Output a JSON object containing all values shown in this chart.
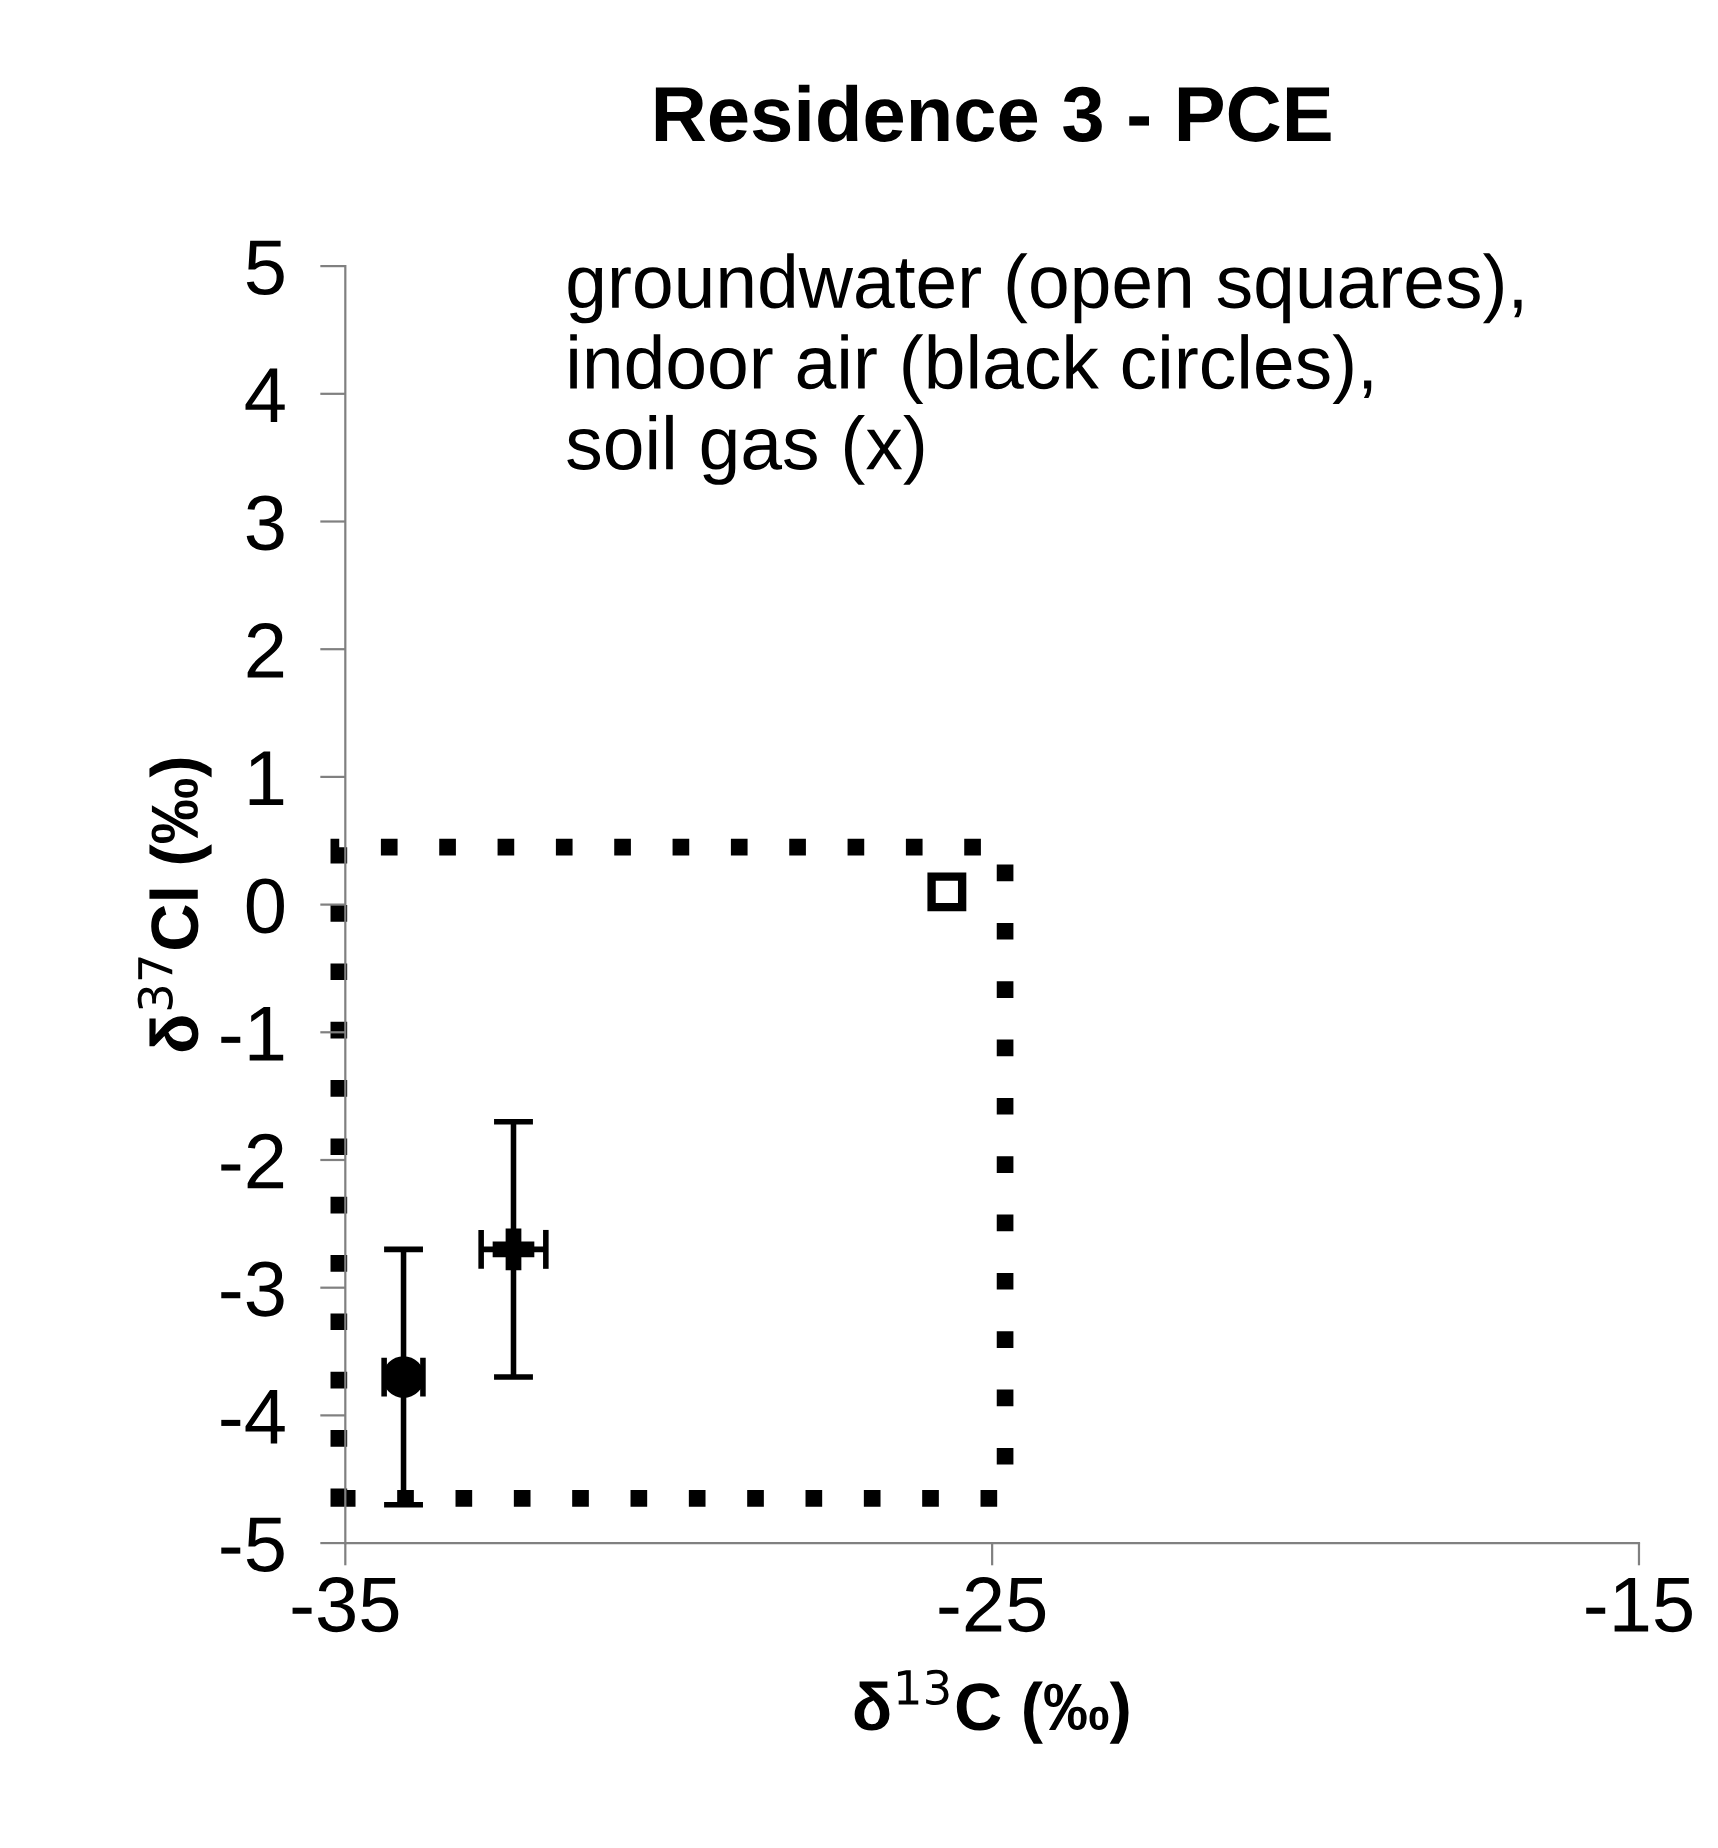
{
  "chart_data": {
    "type": "scatter",
    "title": "Residence 3 - PCE",
    "xlabel": "δ$^{13}$C (‰)",
    "ylabel": "δ$^{37}$Cl (‰)",
    "annotations": [
      "groundwater (open squares),\nindoor air (black circles),\nsoil gas (x)"
    ],
    "xlim": [
      -35,
      -15
    ],
    "xticks": [
      -35,
      -25,
      -15
    ],
    "ylim": [
      -5,
      5
    ],
    "yticks": [
      -5,
      -4,
      -3,
      -2,
      -1,
      0,
      1,
      2,
      3,
      4,
      5
    ],
    "grid": false,
    "legend": false,
    "series": [
      {
        "color": "#000000",
        "marker": "square",
        "x": [
          -25.7
        ],
        "values": [
          0.1
        ]
      },
      {
        "color": "#000000",
        "marker": "circle",
        "x": [
          -34.1
        ],
        "values": [
          -3.7
        ],
        "errors": [
          1
        ],
        "xerrors": [
          0.3
        ]
      },
      {
        "color": "#000000",
        "marker": "cross",
        "x": [
          -32.4
        ],
        "values": [
          -2.7
        ],
        "errors": [
          1
        ],
        "xerrors": [
          0.5
        ]
      }
    ]
  }
}
